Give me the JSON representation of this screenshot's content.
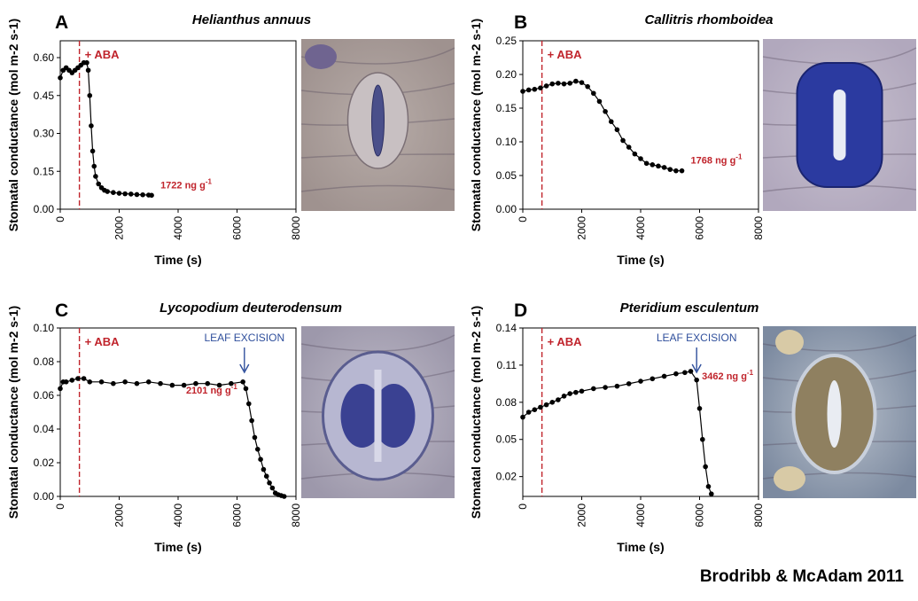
{
  "figure": {
    "credit": "Brodribb & McAdam 2011",
    "colors": {
      "aba": "#c0242c",
      "excision": "#2f4f9c",
      "data": "#000000"
    }
  },
  "chart_data": [
    {
      "type": "scatter",
      "panel": "A",
      "title": "Helianthus annuus",
      "xlabel": "Time (s)",
      "ylabel": "Stomatal conductance (mol m-2 s-1)",
      "xlim": [
        0,
        8000
      ],
      "ylim": [
        0,
        0.6667
      ],
      "xticks": [
        "0",
        "2000",
        "4000",
        "6000",
        "8000"
      ],
      "yticks": [
        "0.00",
        "0.15",
        "0.30",
        "0.45",
        "0.60"
      ],
      "aba_time": 650,
      "aba_label": "+ ABA",
      "concentration_label": "1722 ng g",
      "concentration_exp": "-1",
      "excision": null,
      "series": [
        {
          "x": [
            0,
            100,
            200,
            300,
            400,
            500,
            600,
            700,
            800,
            900,
            950,
            1000,
            1050,
            1100,
            1150,
            1200,
            1300,
            1400,
            1500,
            1600,
            1800,
            2000,
            2200,
            2400,
            2600,
            2800,
            3000,
            3100
          ],
          "y": [
            0.52,
            0.55,
            0.56,
            0.55,
            0.54,
            0.55,
            0.56,
            0.57,
            0.58,
            0.58,
            0.55,
            0.45,
            0.33,
            0.23,
            0.17,
            0.13,
            0.1,
            0.085,
            0.075,
            0.07,
            0.066,
            0.063,
            0.061,
            0.06,
            0.058,
            0.057,
            0.056,
            0.055
          ]
        }
      ],
      "micrograph": "helianthus-stoma"
    },
    {
      "type": "scatter",
      "panel": "B",
      "title": "Callitris rhomboidea",
      "xlabel": "Time (s)",
      "ylabel": "Stomatal conductance (mol m-2 s-1)",
      "xlim": [
        0,
        8000
      ],
      "ylim": [
        0,
        0.25
      ],
      "xticks": [
        "0",
        "2000",
        "4000",
        "6000",
        "8000"
      ],
      "yticks": [
        "0.00",
        "0.05",
        "0.10",
        "0.15",
        "0.20",
        "0.25"
      ],
      "aba_time": 650,
      "aba_label": "+ ABA",
      "concentration_label": "1768 ng g",
      "concentration_exp": "-1",
      "excision": null,
      "series": [
        {
          "x": [
            0,
            200,
            400,
            600,
            800,
            1000,
            1200,
            1400,
            1600,
            1800,
            2000,
            2200,
            2400,
            2600,
            2800,
            3000,
            3200,
            3400,
            3600,
            3800,
            4000,
            4200,
            4400,
            4600,
            4800,
            5000,
            5200,
            5400
          ],
          "y": [
            0.175,
            0.177,
            0.178,
            0.18,
            0.183,
            0.186,
            0.187,
            0.186,
            0.187,
            0.19,
            0.188,
            0.182,
            0.172,
            0.16,
            0.145,
            0.13,
            0.118,
            0.102,
            0.092,
            0.082,
            0.075,
            0.068,
            0.066,
            0.064,
            0.062,
            0.059,
            0.057,
            0.057
          ]
        }
      ],
      "micrograph": "callitris-stoma"
    },
    {
      "type": "scatter",
      "panel": "C",
      "title": "Lycopodium deuterodensum",
      "xlabel": "Time (s)",
      "ylabel": "Stomatal conductance (mol m-2 s-1)",
      "xlim": [
        0,
        8000
      ],
      "ylim": [
        0,
        0.1
      ],
      "xticks": [
        "0",
        "2000",
        "4000",
        "6000",
        "8000"
      ],
      "yticks": [
        "0.00",
        "0.02",
        "0.04",
        "0.06",
        "0.08",
        "0.10"
      ],
      "aba_time": 650,
      "aba_label": "+ ABA",
      "concentration_label": "2101 ng g",
      "concentration_exp": "-1",
      "excision": {
        "time": 6250,
        "label": "LEAF EXCISION"
      },
      "series": [
        {
          "x": [
            0,
            100,
            200,
            400,
            600,
            800,
            1000,
            1400,
            1800,
            2200,
            2600,
            3000,
            3400,
            3800,
            4200,
            4600,
            5000,
            5400,
            5800,
            6200,
            6300,
            6400,
            6500,
            6600,
            6700,
            6800,
            6900,
            7000,
            7100,
            7200,
            7300,
            7400,
            7500,
            7600
          ],
          "y": [
            0.064,
            0.068,
            0.068,
            0.069,
            0.07,
            0.07,
            0.068,
            0.068,
            0.067,
            0.068,
            0.067,
            0.068,
            0.067,
            0.066,
            0.066,
            0.067,
            0.067,
            0.066,
            0.067,
            0.068,
            0.064,
            0.055,
            0.045,
            0.035,
            0.028,
            0.022,
            0.016,
            0.012,
            0.008,
            0.005,
            0.002,
            0.001,
            0.0005,
            0.0
          ]
        }
      ],
      "micrograph": "lycopodium-stoma"
    },
    {
      "type": "scatter",
      "panel": "D",
      "title": "Pteridium esculentum",
      "xlabel": "Time (s)",
      "ylabel": "Stomatal conductance (mol m-2 s-1)",
      "xlim": [
        0,
        8000
      ],
      "ylim": [
        0.004,
        0.14
      ],
      "xticks": [
        "0",
        "2000",
        "4000",
        "6000",
        "8000"
      ],
      "yticks": [
        "0.02",
        "0.05",
        "0.08",
        "0.11",
        "0.14"
      ],
      "aba_time": 650,
      "aba_label": "+ ABA",
      "concentration_label": "3462 ng g",
      "concentration_exp": "-1",
      "excision": {
        "time": 5900,
        "label": "LEAF EXCISION"
      },
      "series": [
        {
          "x": [
            0,
            200,
            400,
            600,
            800,
            1000,
            1200,
            1400,
            1600,
            1800,
            2000,
            2400,
            2800,
            3200,
            3600,
            4000,
            4400,
            4800,
            5200,
            5500,
            5700,
            5900,
            6000,
            6100,
            6200,
            6300,
            6400
          ],
          "y": [
            0.068,
            0.072,
            0.074,
            0.076,
            0.078,
            0.08,
            0.082,
            0.085,
            0.087,
            0.088,
            0.089,
            0.091,
            0.092,
            0.093,
            0.095,
            0.097,
            0.099,
            0.101,
            0.103,
            0.104,
            0.105,
            0.098,
            0.075,
            0.05,
            0.028,
            0.012,
            0.006
          ]
        }
      ],
      "micrograph": "pteridium-stoma"
    }
  ]
}
